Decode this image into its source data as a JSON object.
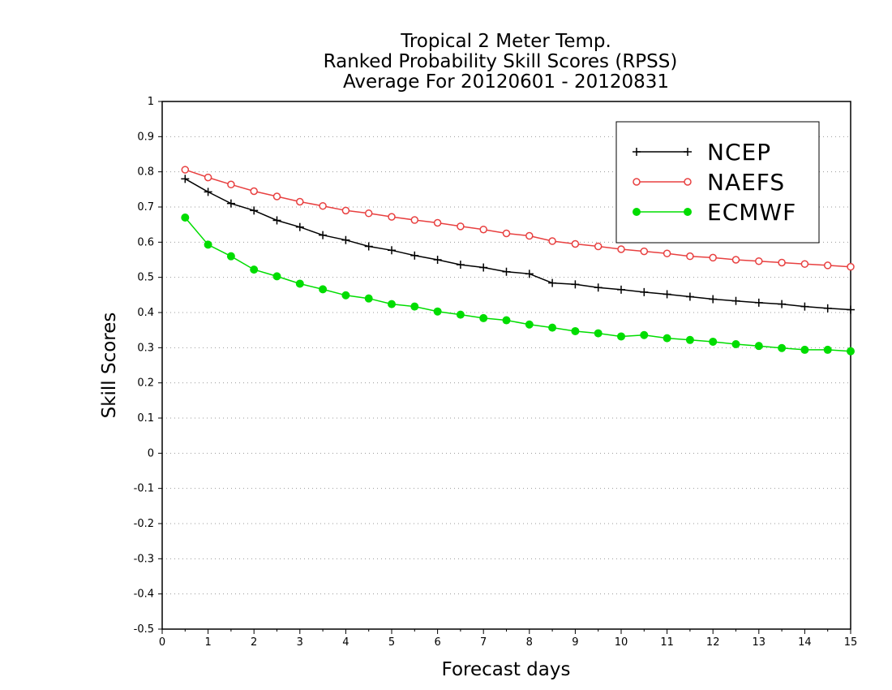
{
  "chart_data": {
    "type": "line",
    "title": [
      "Tropical 2 Meter Temp.",
      "Ranked Probability Skill Scores (RPSS)",
      "Average For 20120601 - 20120831"
    ],
    "xlabel": "Forecast days",
    "ylabel": "Skill Scores",
    "xlim": [
      0,
      15
    ],
    "ylim": [
      -0.5,
      1
    ],
    "x_ticks": [
      "0",
      "1",
      "2",
      "3",
      "4",
      "5",
      "6",
      "7",
      "8",
      "9",
      "10",
      "11",
      "12",
      "13",
      "14",
      "15"
    ],
    "y_ticks": [
      "1",
      "0.9",
      "0.8",
      "0.7",
      "0.6",
      "0.5",
      "0.4",
      "0.3",
      "0.2",
      "0.1",
      "0",
      "-0.1",
      "-0.2",
      "-0.3",
      "-0.4",
      "-0.5"
    ],
    "grid": "horizontal dotted",
    "legend_position": "top-right",
    "x": [
      0.5,
      1,
      1.5,
      2,
      2.5,
      3,
      3.5,
      4,
      4.5,
      5,
      5.5,
      6,
      6.5,
      7,
      7.5,
      8,
      8.5,
      9,
      9.5,
      10,
      10.5,
      11,
      11.5,
      12,
      12.5,
      13,
      13.5,
      14,
      14.5,
      15
    ],
    "series": [
      {
        "name": "NCEP",
        "color": "#000000",
        "marker": "plus",
        "values": [
          0.78,
          0.743,
          0.71,
          0.69,
          0.662,
          0.643,
          0.62,
          0.606,
          0.588,
          0.577,
          0.562,
          0.55,
          0.536,
          0.528,
          0.516,
          0.51,
          0.484,
          0.48,
          0.471,
          0.465,
          0.458,
          0.452,
          0.445,
          0.438,
          0.433,
          0.428,
          0.424,
          0.417,
          0.412,
          0.408
        ]
      },
      {
        "name": "NAEFS",
        "color": "#e84040",
        "marker": "open-circle",
        "values": [
          0.806,
          0.784,
          0.764,
          0.745,
          0.73,
          0.715,
          0.703,
          0.69,
          0.682,
          0.672,
          0.663,
          0.655,
          0.645,
          0.636,
          0.625,
          0.618,
          0.603,
          0.595,
          0.588,
          0.58,
          0.574,
          0.568,
          0.56,
          0.556,
          0.55,
          0.546,
          0.542,
          0.538,
          0.534,
          0.53
        ]
      },
      {
        "name": "ECMWF",
        "color": "#00dd00",
        "marker": "filled-circle",
        "values": [
          0.67,
          0.593,
          0.56,
          0.522,
          0.503,
          0.482,
          0.466,
          0.449,
          0.44,
          0.424,
          0.417,
          0.403,
          0.394,
          0.384,
          0.378,
          0.366,
          0.357,
          0.347,
          0.341,
          0.332,
          0.336,
          0.327,
          0.322,
          0.317,
          0.31,
          0.305,
          0.299,
          0.294,
          0.294,
          0.29
        ]
      }
    ]
  }
}
